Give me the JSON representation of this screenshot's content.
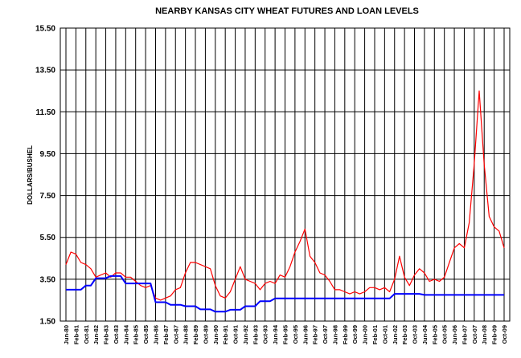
{
  "chart_data": {
    "type": "line",
    "title": "NEARBY KANSAS CITY WHEAT FUTURES AND LOAN LEVELS",
    "y_label": "DOLLARS/BUSHEL",
    "categories": [
      "Jun-80",
      null,
      "Feb-81",
      null,
      "Oct-81",
      null,
      "Jun-82",
      null,
      "Feb-83",
      null,
      "Oct-83",
      null,
      "Jun-84",
      null,
      "Feb-85",
      null,
      "Oct-85",
      null,
      "Jun-86",
      null,
      "Feb-87",
      null,
      "Oct-87",
      null,
      "Jun-88",
      null,
      "Feb-89",
      null,
      "Oct-89",
      null,
      "Jun-90",
      null,
      "Feb-91",
      null,
      "Oct-91",
      null,
      "Jun-92",
      null,
      "Feb-93",
      null,
      "Oct-93",
      null,
      "Jun-94",
      null,
      "Feb-95",
      null,
      "Oct-95",
      null,
      "Jun-96",
      null,
      "Feb-97",
      null,
      "Oct-97",
      null,
      "Jun-98",
      null,
      "Feb-99",
      null,
      "Oct-99",
      null,
      "Jun-00",
      null,
      "Feb-01",
      null,
      "Oct-01",
      null,
      "Jun-02",
      null,
      "Feb-03",
      null,
      "Oct-03",
      null,
      "Jun-04",
      null,
      "Feb-05",
      null,
      "Oct-05",
      null,
      "Jun-06",
      null,
      "Feb-07",
      null,
      "Oct-07",
      null,
      "Jun-08",
      null,
      "Feb-09",
      null,
      "Oct-09"
    ],
    "series": [
      {
        "color": "#ff0000",
        "values": [
          4.2,
          4.8,
          4.7,
          4.3,
          4.2,
          4.0,
          3.6,
          3.7,
          3.8,
          3.6,
          3.8,
          3.8,
          3.6,
          3.6,
          3.4,
          3.2,
          3.1,
          3.2,
          2.6,
          2.5,
          2.6,
          2.7,
          3.0,
          3.1,
          3.8,
          4.3,
          4.3,
          4.2,
          4.1,
          4.0,
          3.2,
          2.7,
          2.6,
          2.9,
          3.5,
          4.1,
          3.5,
          3.4,
          3.3,
          3.0,
          3.3,
          3.4,
          3.3,
          3.7,
          3.6,
          4.1,
          4.8,
          5.3,
          5.9,
          4.6,
          4.3,
          3.8,
          3.7,
          3.4,
          3.0,
          3.0,
          2.9,
          2.8,
          2.9,
          2.8,
          2.9,
          3.1,
          3.1,
          3.0,
          3.1,
          2.9,
          3.5,
          4.6,
          3.6,
          3.2,
          3.7,
          4.0,
          3.8,
          3.4,
          3.5,
          3.4,
          3.6,
          4.3,
          5.0,
          5.2,
          5.0,
          6.2,
          9.0,
          12.5,
          9.0,
          6.5,
          6.0,
          5.8,
          5.0
        ]
      },
      {
        "color": "#0000ff",
        "values": [
          3.0,
          3.0,
          3.0,
          3.0,
          3.2,
          3.2,
          3.55,
          3.55,
          3.55,
          3.65,
          3.65,
          3.65,
          3.3,
          3.3,
          3.3,
          3.3,
          3.3,
          3.3,
          2.4,
          2.4,
          2.4,
          2.28,
          2.28,
          2.28,
          2.21,
          2.21,
          2.21,
          2.06,
          2.06,
          2.06,
          1.95,
          1.95,
          1.95,
          2.04,
          2.04,
          2.04,
          2.21,
          2.21,
          2.21,
          2.45,
          2.45,
          2.45,
          2.58,
          2.58,
          2.58,
          2.58,
          2.58,
          2.58,
          2.58,
          2.58,
          2.58,
          2.58,
          2.58,
          2.58,
          2.58,
          2.58,
          2.58,
          2.58,
          2.58,
          2.58,
          2.58,
          2.58,
          2.58,
          2.58,
          2.58,
          2.58,
          2.8,
          2.8,
          2.8,
          2.8,
          2.8,
          2.8,
          2.75,
          2.75,
          2.75,
          2.75,
          2.75,
          2.75,
          2.75,
          2.75,
          2.75,
          2.75,
          2.75,
          2.75,
          2.75,
          2.75,
          2.75,
          2.75,
          2.75
        ]
      }
    ],
    "ylim": [
      1.5,
      15.5
    ],
    "yticks": [
      {
        "value": 1.5,
        "label": "1.50"
      },
      {
        "value": 3.5,
        "label": "3.50"
      },
      {
        "value": 5.5,
        "label": "5.50"
      },
      {
        "value": 7.5,
        "label": "7.50"
      },
      {
        "value": 9.5,
        "label": "9.50"
      },
      {
        "value": 11.5,
        "label": "11.50"
      },
      {
        "value": 13.5,
        "label": "13.50"
      },
      {
        "value": 15.5,
        "label": "15.50"
      }
    ],
    "grid": true
  }
}
